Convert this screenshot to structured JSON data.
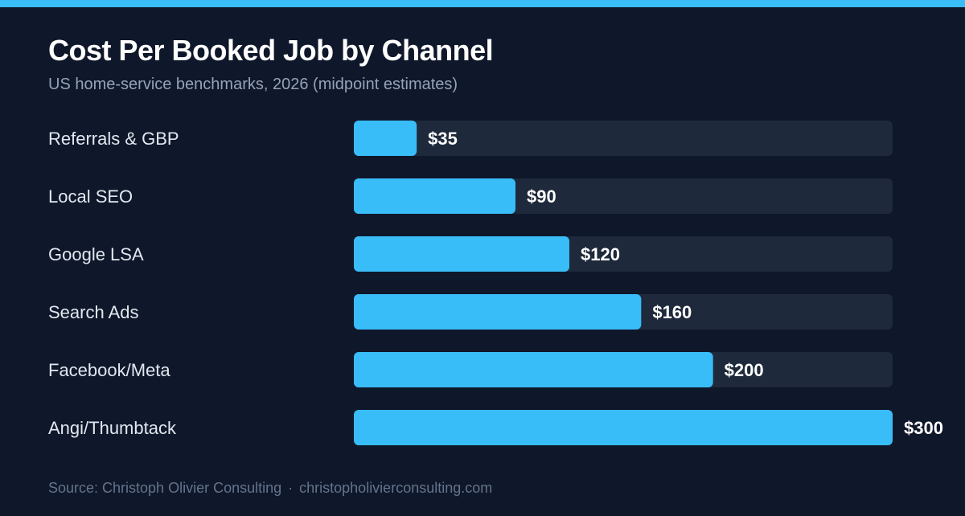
{
  "header": {
    "title": "Cost Per Booked Job by Channel",
    "subtitle": "US home-service benchmarks, 2026 (midpoint estimates)"
  },
  "footer": {
    "source": "Source: Christoph Olivier Consulting",
    "separator": "·",
    "url": "christopholivierconsulting.com"
  },
  "colors": {
    "background": "#0f172a",
    "accent": "#38bdf8",
    "track": "#1e293b",
    "label": "#e2e8f0",
    "value_label": "#ffffff"
  },
  "chart_data": {
    "type": "bar",
    "orientation": "horizontal",
    "categories": [
      "Referrals & GBP",
      "Local SEO",
      "Google LSA",
      "Search Ads",
      "Facebook/Meta",
      "Angi/Thumbtack"
    ],
    "values": [
      35,
      90,
      120,
      160,
      200,
      300
    ],
    "value_labels": [
      "$35",
      "$90",
      "$120",
      "$160",
      "$200",
      "$300"
    ],
    "xlim": [
      0,
      300
    ],
    "grid": false,
    "legend": "none"
  }
}
